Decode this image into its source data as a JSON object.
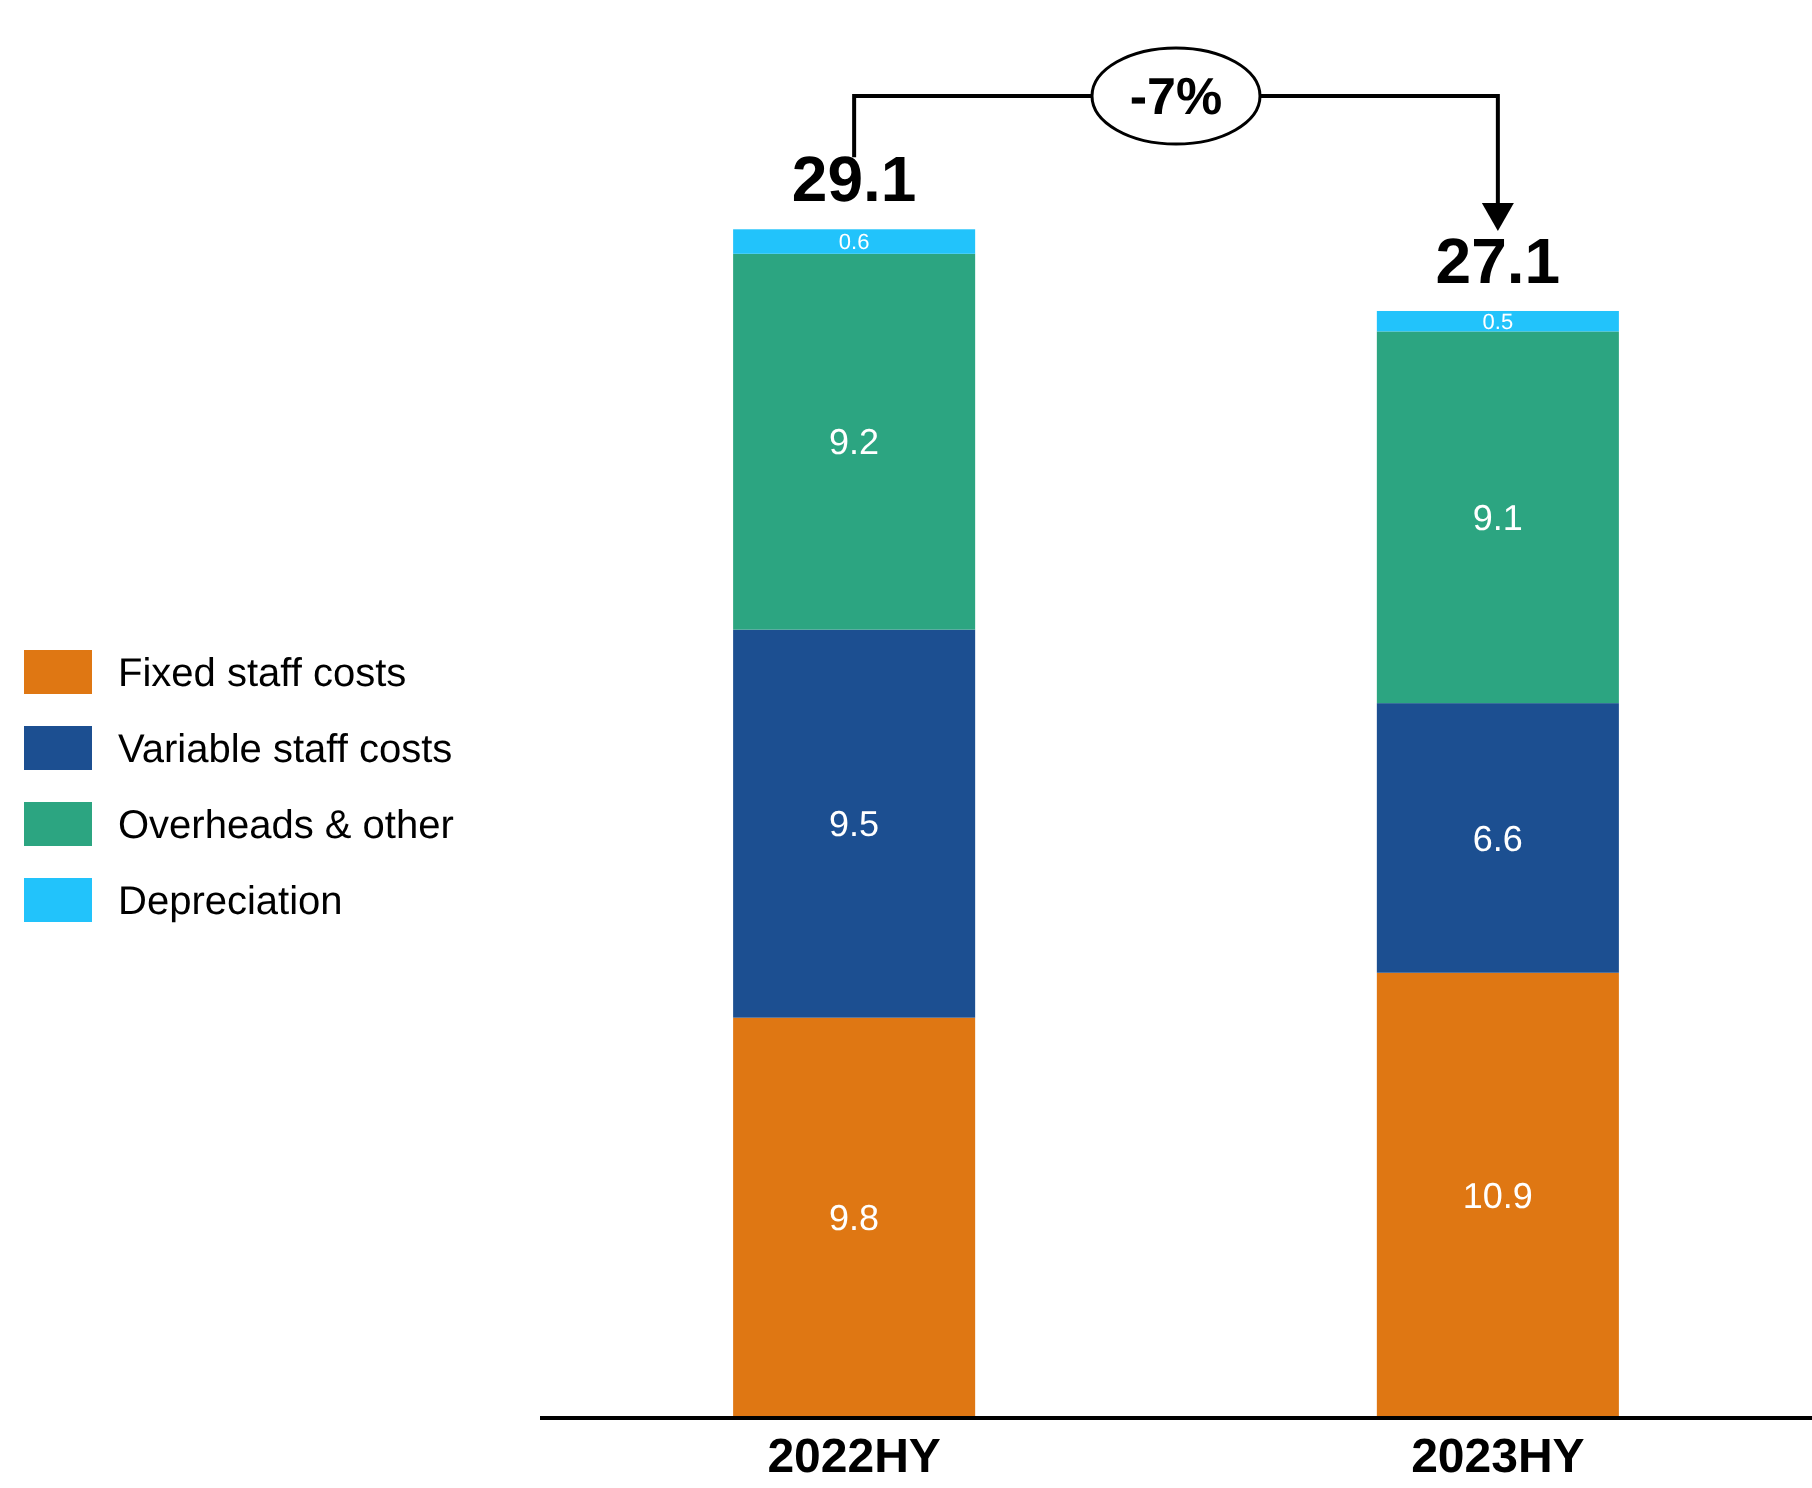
{
  "chart_data": {
    "type": "bar",
    "stacked": true,
    "categories": [
      "2022HY",
      "2023HY"
    ],
    "series": [
      {
        "name": "Fixed staff costs",
        "color": "#df7713",
        "values": [
          9.8,
          10.9
        ]
      },
      {
        "name": "Variable staff costs",
        "color": "#1c4f91",
        "values": [
          9.5,
          6.6
        ]
      },
      {
        "name": "Overheads & other",
        "color": "#2ca581",
        "values": [
          9.2,
          9.1
        ]
      },
      {
        "name": "Depreciation",
        "color": "#22c3fb",
        "values": [
          0.6,
          0.5
        ]
      }
    ],
    "data_labels": true,
    "totals": [
      "29.1",
      "27.1"
    ],
    "legend": "left",
    "grid": false,
    "annotations": [
      "-7%"
    ]
  }
}
